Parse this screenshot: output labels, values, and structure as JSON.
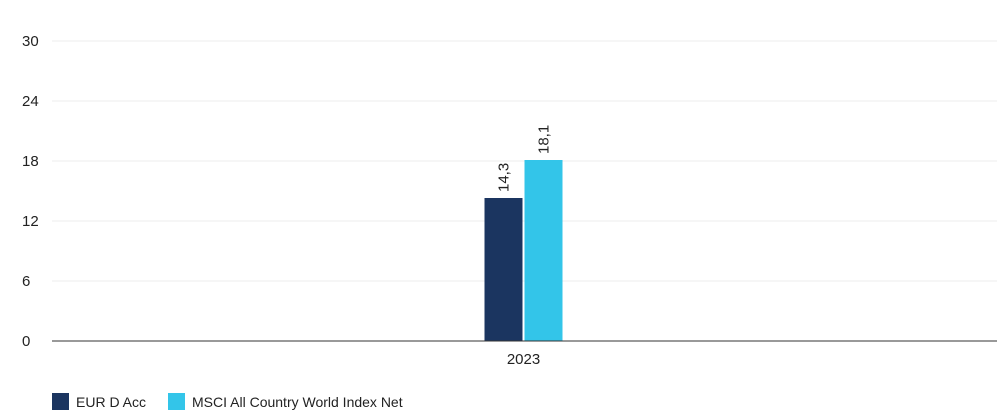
{
  "chart_data": {
    "type": "bar",
    "categories": [
      "2023"
    ],
    "series": [
      {
        "name": "EUR D Acc",
        "values": [
          14.3
        ],
        "labels": [
          "14,3"
        ],
        "color": "#1b3560"
      },
      {
        "name": "MSCI All Country World Index Net",
        "values": [
          18.1
        ],
        "labels": [
          "18,1"
        ],
        "color": "#33c5e9"
      }
    ],
    "ylim": [
      0,
      30
    ],
    "yticks": [
      0,
      6,
      12,
      18,
      24,
      30
    ],
    "grid": true,
    "legend_position": "bottom-left",
    "title": "",
    "xlabel": "",
    "ylabel": ""
  }
}
